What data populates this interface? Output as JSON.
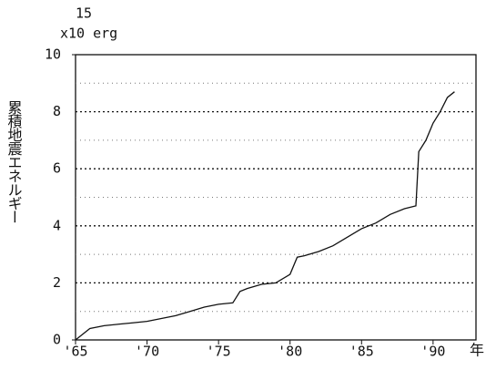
{
  "chart_data": {
    "type": "line",
    "y_unit_exponent": "15",
    "y_unit": "x10 erg",
    "y_label": "累積地震エネルギー",
    "x_unit": "年",
    "x": [
      1965.0,
      1965.5,
      1966,
      1967,
      1968,
      1969,
      1970,
      1971,
      1972,
      1973,
      1974,
      1975,
      1976,
      1976.5,
      1977,
      1978,
      1979,
      1980,
      1980.5,
      1981,
      1982,
      1983,
      1984,
      1985,
      1986,
      1987,
      1988,
      1988.8,
      1989,
      1989.5,
      1990,
      1990.5,
      1991,
      1991.5
    ],
    "series": [
      {
        "color": "#111111",
        "values": [
          0,
          0.2,
          0.4,
          0.5,
          0.55,
          0.6,
          0.65,
          0.75,
          0.85,
          1.0,
          1.15,
          1.25,
          1.3,
          1.7,
          1.8,
          1.95,
          2.0,
          2.3,
          2.9,
          2.95,
          3.1,
          3.3,
          3.6,
          3.9,
          4.1,
          4.4,
          4.6,
          4.7,
          6.6,
          7.0,
          7.6,
          8.0,
          8.5,
          8.7
        ]
      }
    ],
    "xlim": [
      1965,
      1993
    ],
    "xticks": [
      {
        "value": 1965,
        "label": "'65"
      },
      {
        "value": 1970,
        "label": "'70"
      },
      {
        "value": 1975,
        "label": "'75"
      },
      {
        "value": 1980,
        "label": "'80"
      },
      {
        "value": 1985,
        "label": "'85"
      },
      {
        "value": 1990,
        "label": "'90"
      }
    ],
    "ylim": [
      0,
      10
    ],
    "yticks": [
      0,
      2,
      4,
      6,
      8,
      10
    ],
    "yminorgrid": [
      1,
      3,
      5,
      7,
      9
    ],
    "grid": true
  }
}
